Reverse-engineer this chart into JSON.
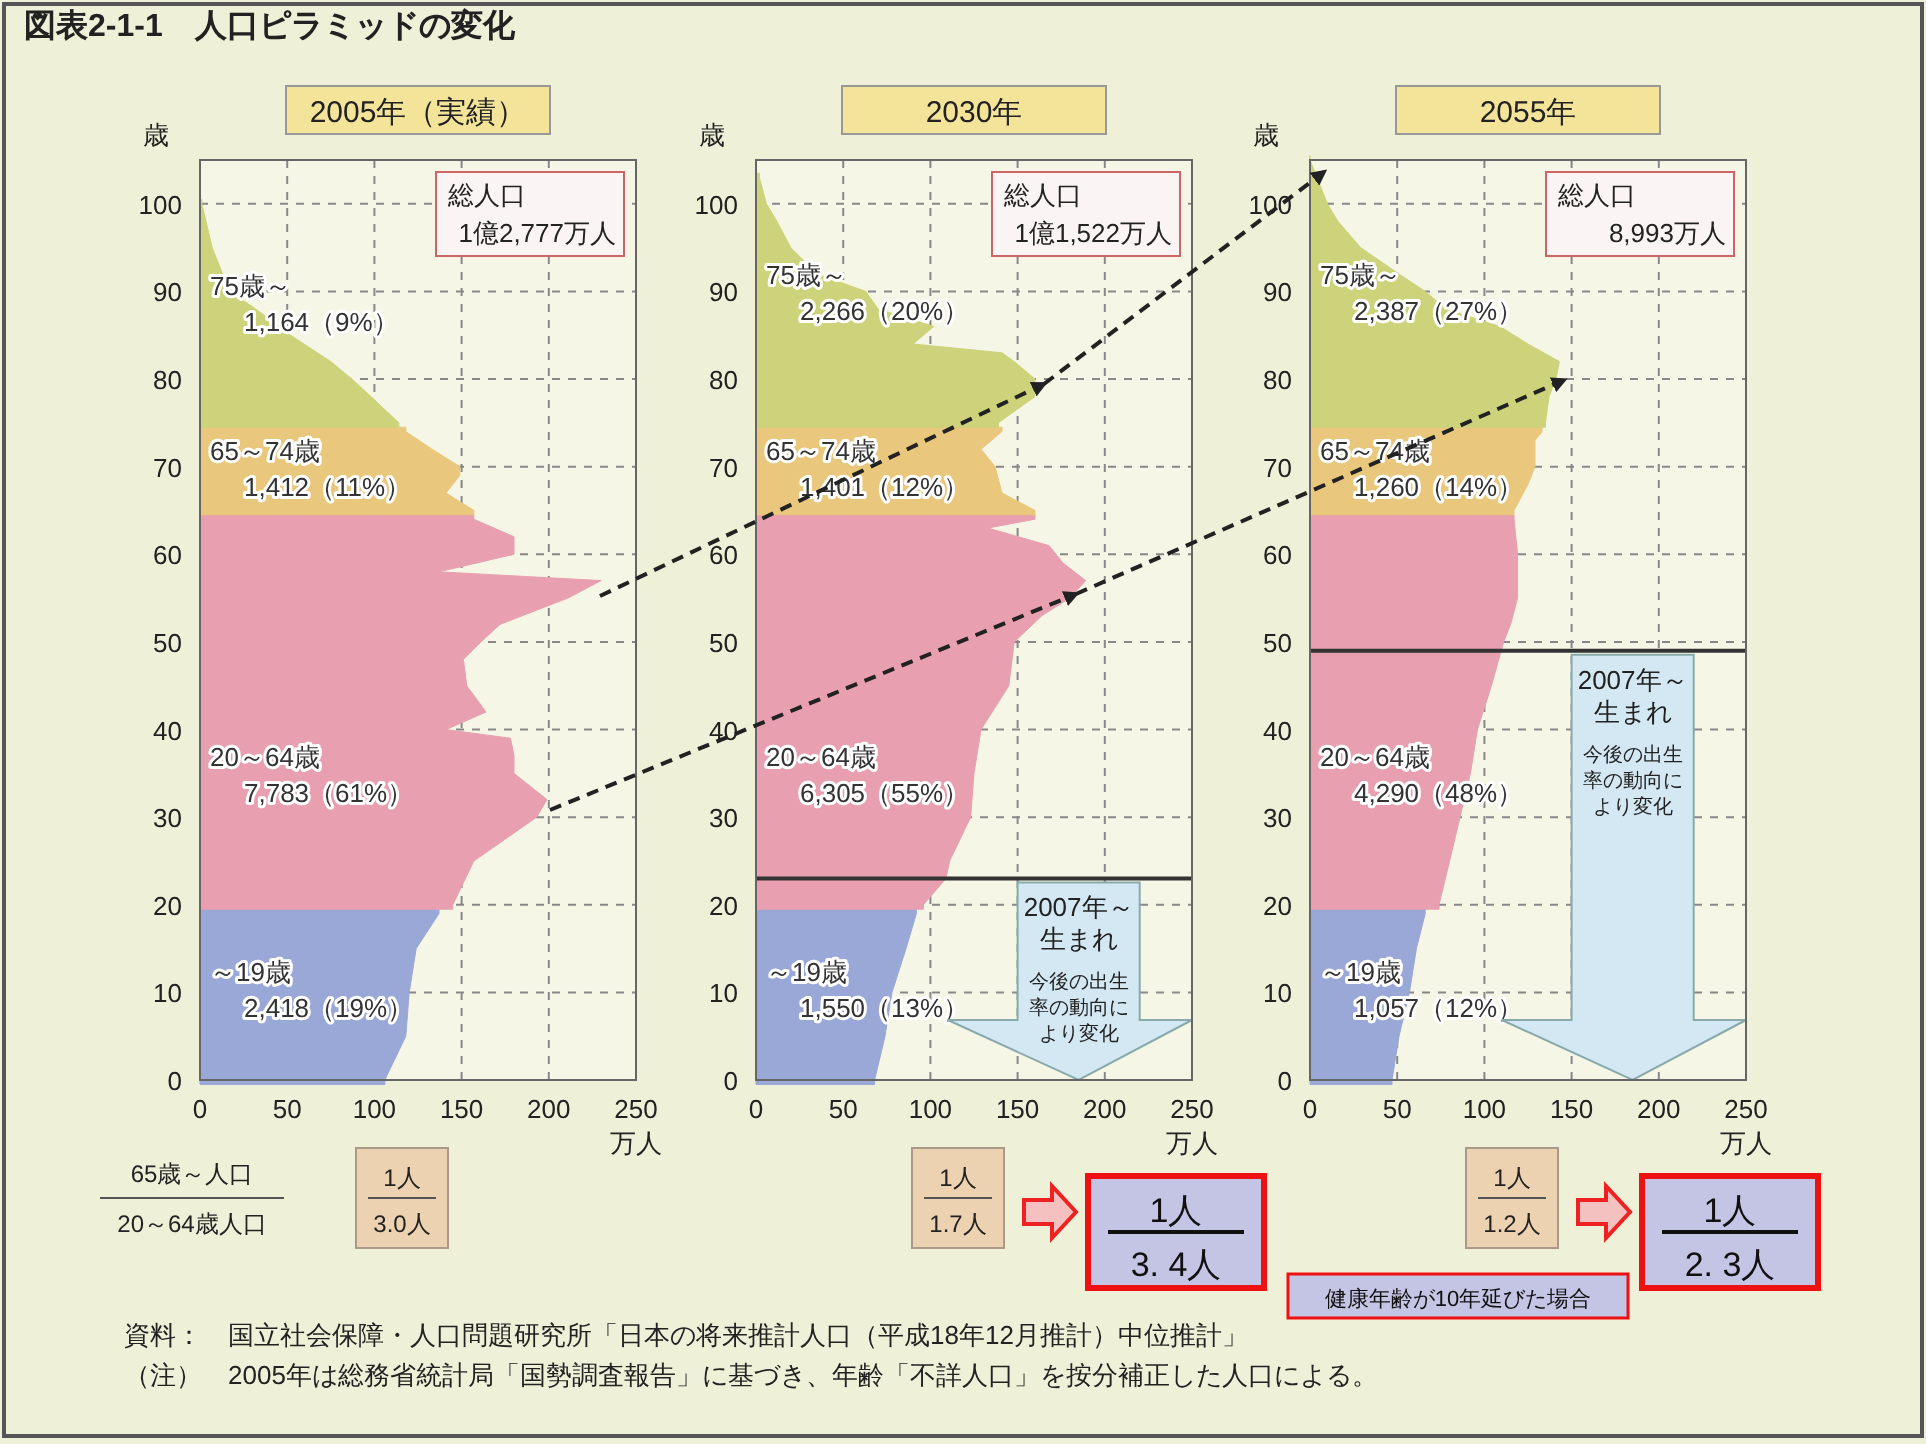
{
  "chart_data": [
    {
      "type": "area",
      "orientation": "horizontal",
      "title": "2005年（実績）",
      "xlabel": "万人",
      "ylabel": "歳",
      "xlim": [
        0,
        250
      ],
      "xticks": [
        0,
        50,
        100,
        150,
        200,
        250
      ],
      "ylim": [
        0,
        105
      ],
      "yticks": [
        0,
        10,
        20,
        30,
        40,
        50,
        60,
        70,
        80,
        90,
        100
      ],
      "grid": true,
      "series": [
        {
          "name": "～19歳",
          "color": "#9aa8d8",
          "x": [
            0,
            5,
            10,
            15,
            19
          ],
          "values": [
            106,
            118,
            120,
            124,
            137
          ]
        },
        {
          "name": "20～64歳",
          "color": "#e8a0b0",
          "x": [
            20,
            25,
            30,
            32,
            35,
            37,
            39,
            40,
            42,
            45,
            48,
            50,
            52,
            55,
            57,
            58,
            60,
            62,
            64
          ],
          "values": [
            145,
            157,
            193,
            199,
            180,
            180,
            178,
            141,
            164,
            153,
            151,
            161,
            172,
            211,
            230,
            137,
            180,
            180,
            157
          ]
        },
        {
          "name": "65～74歳",
          "color": "#e9c77c",
          "x": [
            65,
            67,
            69,
            70,
            72,
            74
          ],
          "values": [
            157,
            141,
            149,
            149,
            133,
            118
          ]
        },
        {
          "name": "75歳～",
          "color": "#cdd37a",
          "x": [
            75,
            78,
            80,
            82,
            85,
            88,
            90,
            95,
            100
          ],
          "values": [
            114,
            98,
            87,
            75,
            52,
            32,
            17,
            7,
            1
          ]
        }
      ],
      "annotations": [
        "2,418（19%）",
        "7,783（61%）",
        "1,412（11%）",
        "1,164（9%）",
        "総人口",
        "1億2,777万人",
        "1人",
        "3.0人"
      ]
    },
    {
      "type": "area",
      "orientation": "horizontal",
      "title": "2030年",
      "xlabel": "万人",
      "ylabel": "歳",
      "xlim": [
        0,
        250
      ],
      "xticks": [
        0,
        50,
        100,
        150,
        200,
        250
      ],
      "ylim": [
        0,
        105
      ],
      "yticks": [
        0,
        10,
        20,
        30,
        40,
        50,
        60,
        70,
        80,
        90,
        100
      ],
      "grid": true,
      "series": [
        {
          "name": "～19歳",
          "color": "#9aa8d8",
          "x": [
            0,
            5,
            10,
            15,
            19
          ],
          "values": [
            68,
            74,
            78,
            86,
            92
          ]
        },
        {
          "name": "20～64歳",
          "color": "#e8a0b0",
          "x": [
            20,
            23,
            25,
            30,
            35,
            40,
            45,
            50,
            53,
            55,
            57,
            59,
            61,
            63,
            64
          ],
          "values": [
            96,
            109,
            111,
            123,
            125,
            129,
            145,
            148,
            164,
            180,
            189,
            176,
            168,
            133,
            160
          ]
        },
        {
          "name": "65～74歳",
          "color": "#e9c77c",
          "x": [
            65,
            67,
            70,
            72,
            74
          ],
          "values": [
            160,
            141,
            137,
            129,
            141
          ]
        },
        {
          "name": "75歳～",
          "color": "#cdd37a",
          "x": [
            75,
            78,
            80,
            82,
            83,
            84,
            86,
            88,
            90,
            92,
            95,
            98,
            100,
            103
          ],
          "values": [
            139,
            160,
            160,
            148,
            141,
            90,
            102,
            70,
            63,
            35,
            20,
            12,
            6,
            2
          ]
        }
      ],
      "ref_lines": [
        {
          "axis": "y",
          "value": 23,
          "label": "2007年～生まれ"
        }
      ],
      "annotations": [
        "1,550（13%）",
        "6,305（55%）",
        "1,401（12%）",
        "2,266（20%）",
        "総人口",
        "1億1,522万人",
        "1人",
        "1.7人",
        "今後の出生率の動向により変化",
        "1人",
        "3. 4人"
      ]
    },
    {
      "type": "area",
      "orientation": "horizontal",
      "title": "2055年",
      "xlabel": "万人",
      "ylabel": "歳",
      "xlim": [
        0,
        250
      ],
      "xticks": [
        0,
        50,
        100,
        150,
        200,
        250
      ],
      "ylim": [
        0,
        105
      ],
      "yticks": [
        0,
        10,
        20,
        30,
        40,
        50,
        60,
        70,
        80,
        90,
        100
      ],
      "grid": true,
      "series": [
        {
          "name": "～19歳",
          "color": "#9aa8d8",
          "x": [
            0,
            5,
            10,
            15,
            19
          ],
          "values": [
            47,
            51,
            57,
            61,
            66
          ]
        },
        {
          "name": "20～64歳",
          "color": "#e8a0b0",
          "x": [
            20,
            25,
            30,
            35,
            40,
            45,
            50,
            52,
            55,
            60,
            64
          ],
          "values": [
            74,
            80,
            86,
            92,
            96,
            104,
            111,
            115,
            119,
            119,
            117
          ]
        },
        {
          "name": "65～74歳",
          "color": "#e9c77c",
          "x": [
            65,
            68,
            70,
            73,
            74
          ],
          "values": [
            117,
            125,
            129,
            129,
            133
          ]
        },
        {
          "name": "75歳～",
          "color": "#cdd37a",
          "x": [
            75,
            78,
            80,
            82,
            84,
            86,
            88,
            90,
            92,
            95,
            98,
            100,
            103,
            105
          ],
          "values": [
            135,
            137,
            141,
            143,
            125,
            109,
            78,
            66,
            51,
            29,
            16,
            10,
            4,
            0
          ]
        }
      ],
      "ref_lines": [
        {
          "axis": "y",
          "value": 49,
          "label": "2007年～生まれ"
        }
      ],
      "annotations": [
        "1,057（12%）",
        "4,290（48%）",
        "1,260（14%）",
        "2,387（27%）",
        "総人口",
        "8,993万人",
        "1人",
        "1.2人",
        "今後の出生率の動向により変化",
        "1人",
        "2. 3人"
      ]
    },
    {
      "type": "other",
      "title": "図表2-1-1　人口ピラミッドの変化",
      "annotations": [
        "65歳～人口",
        "20～64歳人口",
        "健康年齢が10年延びた場合",
        "資料：　国立社会保障・人口問題研究所「日本の将来推計人口（平成18年12月推計）中位推計」",
        "（注）　2005年は総務省統計局「国勢調査報告」に基づき、年齢「不詳人口」を按分補正した人口による。"
      ]
    }
  ]
}
